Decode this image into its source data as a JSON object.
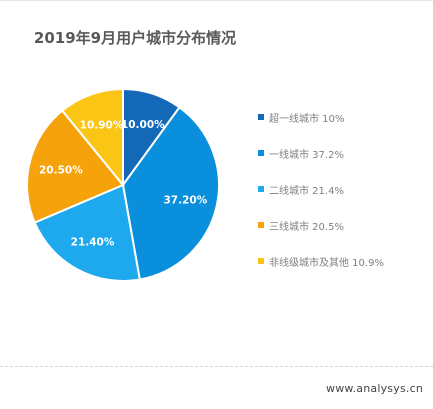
{
  "page": {
    "title": "2019年9月用户城市分布情况",
    "source": "www.analysys.cn"
  },
  "chart_data": {
    "type": "pie",
    "title": "2019年9月用户城市分布情况",
    "unit": "%",
    "start_angle_deg": 0,
    "direction": "clockwise",
    "legend_position": "right",
    "slices": [
      {
        "name": "超一线城市",
        "legend_label": "超一线城市 10%",
        "value": 10.0,
        "label": "10.00%",
        "color": "#1468b8"
      },
      {
        "name": "一线城市",
        "legend_label": "一线城市 37.2%",
        "value": 37.2,
        "label": "37.20%",
        "color": "#0a8fdc"
      },
      {
        "name": "二线城市",
        "legend_label": "二线城市 21.4%",
        "value": 21.4,
        "label": "21.40%",
        "color": "#1ea9ef"
      },
      {
        "name": "三线城市",
        "legend_label": "三线城市 20.5%",
        "value": 20.5,
        "label": "20.50%",
        "color": "#f5a20b"
      },
      {
        "name": "非线级城市及其他",
        "legend_label": "非线级城市及其他 10.9%",
        "value": 10.9,
        "label": "10.90%",
        "color": "#fbc515"
      }
    ]
  }
}
